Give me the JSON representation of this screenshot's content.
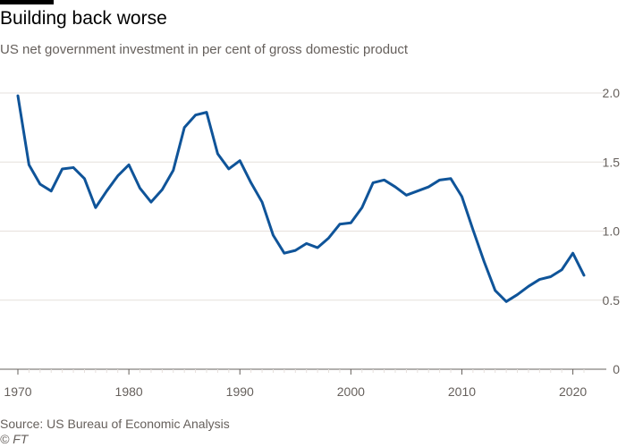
{
  "header": {
    "title": "Building back worse",
    "subtitle": "US net government investment in per cent of gross domestic product"
  },
  "footer": {
    "source": "Source: US Bureau of Economic Analysis",
    "copyright": "© FT"
  },
  "colors": {
    "line": "#0f5499",
    "grid": "#e6e0dc",
    "axis": "#66605c"
  },
  "chart_data": {
    "type": "line",
    "title": "Building back worse",
    "subtitle": "US net government investment in per cent of gross domestic product",
    "xlabel": "",
    "ylabel": "",
    "xlim": [
      1970,
      2021
    ],
    "ylim": [
      0,
      2.0
    ],
    "x_ticks": [
      1970,
      1980,
      1990,
      2000,
      2010,
      2020
    ],
    "x_tick_labels": [
      "1970",
      "1980",
      "1990",
      "2000",
      "2010",
      "2020"
    ],
    "y_ticks": [
      0,
      0.5,
      1.0,
      1.5,
      2.0
    ],
    "y_tick_labels": [
      "0",
      "0.5",
      "1.0",
      "1.5",
      "2.0"
    ],
    "grid": "horizontal",
    "legend": "none",
    "series": [
      {
        "x": [
          1970,
          1971,
          1972,
          1973,
          1974,
          1975,
          1976,
          1977,
          1978,
          1979,
          1980,
          1981,
          1982,
          1983,
          1984,
          1985,
          1986,
          1987,
          1988,
          1989,
          1990,
          1991,
          1992,
          1993,
          1994,
          1995,
          1996,
          1997,
          1998,
          1999,
          2000,
          2001,
          2002,
          2003,
          2004,
          2005,
          2006,
          2007,
          2008,
          2009,
          2010,
          2011,
          2012,
          2013,
          2014,
          2015,
          2016,
          2017,
          2018,
          2019,
          2020,
          2021
        ],
        "values": [
          1.98,
          1.48,
          1.34,
          1.29,
          1.45,
          1.46,
          1.38,
          1.17,
          1.29,
          1.4,
          1.48,
          1.31,
          1.21,
          1.3,
          1.44,
          1.75,
          1.84,
          1.86,
          1.56,
          1.45,
          1.51,
          1.35,
          1.21,
          0.97,
          0.84,
          0.86,
          0.91,
          0.88,
          0.95,
          1.05,
          1.06,
          1.17,
          1.35,
          1.37,
          1.32,
          1.26,
          1.29,
          1.32,
          1.37,
          1.38,
          1.25,
          1.01,
          0.78,
          0.57,
          0.49,
          0.54,
          0.6,
          0.65,
          0.67,
          0.72,
          0.84,
          0.68
        ]
      }
    ]
  }
}
